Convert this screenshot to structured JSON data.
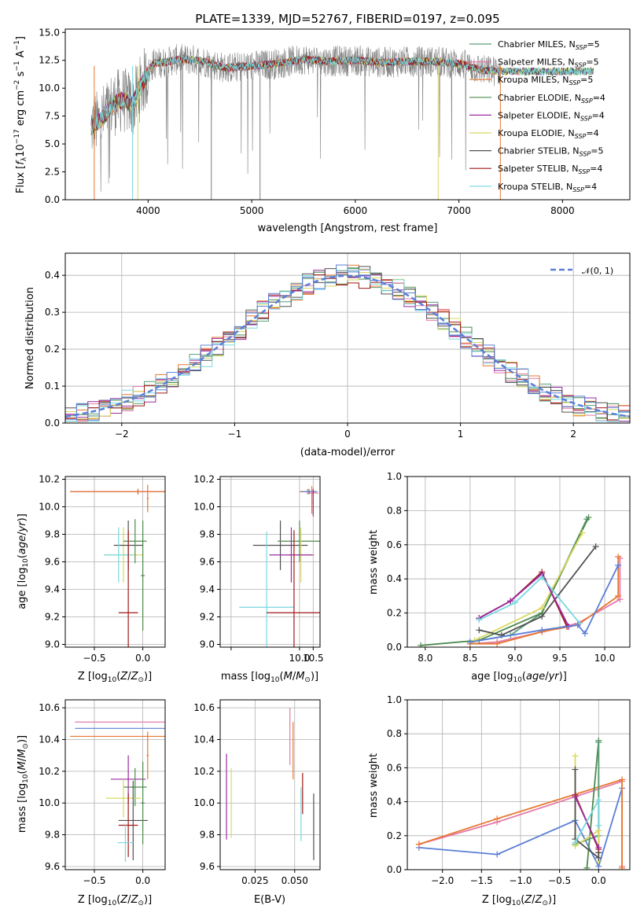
{
  "chart_data": [
    {
      "id": "spectrum",
      "type": "line",
      "title": "PLATE=1339, MJD=52767, FIBERID=0197, z=0.095",
      "xlabel": "wavelength [Angstrom, rest frame]",
      "ylabel": "Flux [f_λ 10^-17 erg cm^-2 s^-1 A^-1]",
      "xlim": [
        3200,
        8650
      ],
      "ylim": [
        0,
        15.3
      ],
      "xticks": [
        4000,
        5000,
        6000,
        7000,
        8000
      ],
      "yticks": [
        0.0,
        2.5,
        5.0,
        7.5,
        10.0,
        12.5,
        15.0
      ],
      "observed": {
        "color": "#808080",
        "x": [
          3450,
          3550,
          3650,
          3750,
          3850,
          3950,
          4050,
          4150,
          4300,
          4500,
          4750,
          5000,
          5250,
          5500,
          5750,
          6000,
          6250,
          6500,
          6750,
          7000,
          7250,
          7400
        ],
        "y": [
          6.5,
          7.2,
          8.5,
          9.0,
          8.5,
          10.5,
          12.2,
          12.3,
          12.6,
          12.5,
          11.8,
          12.0,
          12.2,
          12.6,
          12.4,
          12.5,
          12.3,
          12.4,
          12.4,
          12.2,
          11.6,
          11.5
        ]
      },
      "model_span": [
        3450,
        8300
      ],
      "legend_position": "upper right",
      "legend": [
        {
          "name": "Chabrier MILES, N_SSP=5",
          "color": "#5c9e7a"
        },
        {
          "name": "Salpeter MILES, N_SSP=5",
          "color": "#e47aaa"
        },
        {
          "name": "Kroupa MILES, N_SSP=5",
          "color": "#e8782f"
        },
        {
          "name": "Chabrier ELODIE, N_SSP=4",
          "color": "#4d8a4d"
        },
        {
          "name": "Salpeter ELODIE, N_SSP=4",
          "color": "#9a2ba0"
        },
        {
          "name": "Kroupa ELODIE, N_SSP=4",
          "color": "#d8d860"
        },
        {
          "name": "Chabrier STELIB, N_SSP=5",
          "color": "#505050"
        },
        {
          "name": "Salpeter STELIB, N_SSP=4",
          "color": "#a01818"
        },
        {
          "name": "Kroupa STELIB, N_SSP=4",
          "color": "#78d8e0"
        }
      ]
    },
    {
      "id": "residuals",
      "type": "line",
      "xlabel": "(data-model)/error",
      "ylabel": "Normed distribution",
      "xlim": [
        -2.5,
        2.5
      ],
      "ylim": [
        0,
        0.46
      ],
      "xticks": [
        -2,
        -1,
        0,
        1,
        2
      ],
      "yticks": [
        0.0,
        0.1,
        0.2,
        0.3,
        0.4
      ],
      "legend": [
        {
          "name": "N(0,1)",
          "label_display": "𝒩(0, 1)",
          "color": "#5b7fd6",
          "style": "dashed"
        }
      ],
      "histogram_bin_width": 0.1
    },
    {
      "id": "age_vs_z",
      "type": "scatter",
      "xlabel": "Z [log10(Z/Z⊙)]",
      "ylabel": "age [log10(age/yr)]",
      "xlim": [
        -0.8,
        0.23
      ],
      "ylim": [
        8.98,
        10.22
      ],
      "xticks": [
        -0.5,
        0.0
      ],
      "yticks": [
        9.0,
        9.2,
        9.4,
        9.6,
        9.8,
        10.0,
        10.2
      ],
      "points": [
        {
          "x": -0.05,
          "xerr": 0.7,
          "y": 10.11,
          "yerr": 0.02,
          "color": "#5b7fd6"
        },
        {
          "x": -0.05,
          "xerr": 0.68,
          "y": 10.11,
          "yerr": 0.02,
          "color": "#e47aaa"
        },
        {
          "x": -0.05,
          "xerr": 0.7,
          "y": 10.11,
          "yerr": 0.02,
          "color": "#e8782f"
        },
        {
          "x": 0.05,
          "xerr": 0.01,
          "y": 10.06,
          "yerr": 0.1,
          "color": "#e8782f"
        },
        {
          "x": -0.2,
          "xerr": 0.2,
          "y": 9.65,
          "yerr": 0.2,
          "color": "#d8d860"
        },
        {
          "x": -0.15,
          "xerr": 0.15,
          "y": 9.72,
          "yerr": 0.18,
          "color": "#505050"
        },
        {
          "x": -0.08,
          "xerr": 0.12,
          "y": 9.75,
          "yerr": 0.16,
          "color": "#4d8a4d"
        },
        {
          "x": -0.25,
          "xerr": 0.15,
          "y": 9.65,
          "yerr": 0.2,
          "color": "#78d8e0"
        },
        {
          "x": -0.15,
          "xerr": 0.1,
          "y": 9.23,
          "yerr": 0.6,
          "color": "#a01818"
        },
        {
          "x": 0.0,
          "xerr": 0.02,
          "y": 9.5,
          "yerr": 0.4,
          "color": "#4d8a4d"
        }
      ]
    },
    {
      "id": "age_vs_mass",
      "type": "scatter",
      "xlabel": "mass [log10(M/M⊙)]",
      "ylabel": "",
      "xlim": [
        7.1,
        10.75
      ],
      "ylim": [
        8.98,
        10.22
      ],
      "xticks": [
        7.5,
        10.0,
        10.5
      ],
      "xtick_labels": [
        "",
        "10.0",
        "10.5"
      ],
      "yticks": [
        9.0,
        9.2,
        9.4,
        9.6,
        9.8,
        10.0,
        10.2
      ],
      "points": [
        {
          "x": 10.3,
          "xerr": 0.3,
          "y": 10.11,
          "yerr": 0.02,
          "color": "#e8782f"
        },
        {
          "x": 10.5,
          "xerr": 0.2,
          "y": 10.1,
          "yerr": 0.02,
          "color": "#e47aaa"
        },
        {
          "x": 10.35,
          "xerr": 0.3,
          "y": 10.11,
          "yerr": 0.02,
          "color": "#5b7fd6"
        },
        {
          "x": 10.45,
          "xerr": 0.02,
          "y": 10.05,
          "yerr": 0.1,
          "color": "#e8782f"
        },
        {
          "x": 10.5,
          "xerr": 0.02,
          "y": 10.03,
          "yerr": 0.1,
          "color": "#9a2ba0"
        },
        {
          "x": 9.3,
          "xerr": 1.0,
          "y": 9.72,
          "yerr": 0.18,
          "color": "#505050"
        },
        {
          "x": 10.0,
          "xerr": 0.8,
          "y": 9.75,
          "yerr": 0.15,
          "color": "#4d8a4d"
        },
        {
          "x": 10.05,
          "xerr": 0.5,
          "y": 9.65,
          "yerr": 0.2,
          "color": "#d8d860"
        },
        {
          "x": 9.7,
          "xerr": 0.8,
          "y": 9.65,
          "yerr": 0.2,
          "color": "#9a2ba0"
        },
        {
          "x": 8.8,
          "xerr": 1.0,
          "y": 9.27,
          "yerr": 0.55,
          "color": "#78d8e0"
        },
        {
          "x": 9.8,
          "xerr": 1.0,
          "y": 9.23,
          "yerr": 0.6,
          "color": "#a01818"
        }
      ]
    },
    {
      "id": "massweight_vs_age",
      "type": "line",
      "xlabel": "age [log10(age/yr)]",
      "ylabel": "mass weight",
      "xlim": [
        7.8,
        10.28
      ],
      "ylim": [
        0,
        1.0
      ],
      "xticks": [
        8.0,
        8.5,
        9.0,
        9.5,
        10.0
      ],
      "yticks": [
        0.0,
        0.2,
        0.4,
        0.6,
        0.8,
        1.0
      ],
      "series": [
        {
          "color": "#5c9e7a",
          "x": [
            8.5,
            8.95,
            9.3,
            9.8
          ],
          "y": [
            0.03,
            0.07,
            0.2,
            0.75
          ]
        },
        {
          "color": "#e47aaa",
          "x": [
            8.5,
            8.8,
            9.3,
            9.7,
            10.17,
            10.17
          ],
          "y": [
            0.02,
            0.03,
            0.09,
            0.14,
            0.28,
            0.52
          ]
        },
        {
          "color": "#e8782f",
          "x": [
            8.5,
            8.8,
            9.3,
            9.7,
            10.15,
            10.15
          ],
          "y": [
            0.02,
            0.02,
            0.09,
            0.13,
            0.3,
            0.53
          ]
        },
        {
          "color": "#4d8a4d",
          "x": [
            7.95,
            8.6,
            9.3,
            9.82
          ],
          "y": [
            0.01,
            0.04,
            0.2,
            0.76
          ]
        },
        {
          "color": "#d8d860",
          "x": [
            8.55,
            9.3,
            9.75
          ],
          "y": [
            0.04,
            0.23,
            0.67
          ]
        },
        {
          "color": "#505050",
          "x": [
            8.6,
            8.85,
            9.3,
            9.9
          ],
          "y": [
            0.1,
            0.07,
            0.18,
            0.59
          ]
        },
        {
          "color": "#a01818",
          "x": [
            8.6,
            8.95,
            9.3,
            9.58
          ],
          "y": [
            0.17,
            0.27,
            0.44,
            0.12
          ]
        },
        {
          "color": "#9a2ba0",
          "x": [
            8.6,
            8.95,
            9.3,
            9.6
          ],
          "y": [
            0.17,
            0.27,
            0.43,
            0.12
          ]
        },
        {
          "color": "#78d8e0",
          "x": [
            8.6,
            9.0,
            9.3,
            9.72
          ],
          "y": [
            0.16,
            0.26,
            0.41,
            0.14
          ]
        },
        {
          "color": "#5b7fd6",
          "x": [
            8.5,
            9.3,
            9.7,
            9.78,
            10.15
          ],
          "y": [
            0.03,
            0.1,
            0.13,
            0.08,
            0.48
          ]
        }
      ]
    },
    {
      "id": "mass_vs_z",
      "type": "scatter",
      "xlabel": "Z [log10(Z/Z⊙)]",
      "ylabel": "mass [log10(M/M⊙)]",
      "xlim": [
        -0.8,
        0.23
      ],
      "ylim": [
        9.58,
        10.65
      ],
      "xticks": [
        -0.5,
        0.0
      ],
      "yticks": [
        9.6,
        9.8,
        10.0,
        10.2,
        10.4,
        10.6
      ],
      "points": [
        {
          "x": -0.05,
          "xerr": 0.65,
          "y": 10.51,
          "yerr": 0.0,
          "color": "#e47aaa"
        },
        {
          "x": -0.05,
          "xerr": 0.65,
          "y": 10.47,
          "yerr": 0.0,
          "color": "#5b7fd6"
        },
        {
          "x": -0.05,
          "xerr": 0.7,
          "y": 10.42,
          "yerr": 0.0,
          "color": "#e8782f"
        },
        {
          "x": 0.05,
          "xerr": 0.01,
          "y": 10.3,
          "yerr": 0.15,
          "color": "#e8782f"
        },
        {
          "x": -0.15,
          "xerr": 0.18,
          "y": 10.15,
          "yerr": 0.15,
          "color": "#9a2ba0"
        },
        {
          "x": -0.08,
          "xerr": 0.12,
          "y": 10.1,
          "yerr": 0.12,
          "color": "#4d8a4d"
        },
        {
          "x": -0.2,
          "xerr": 0.18,
          "y": 10.03,
          "yerr": 0.12,
          "color": "#d8d860"
        },
        {
          "x": -0.1,
          "xerr": 0.15,
          "y": 9.89,
          "yerr": 0.25,
          "color": "#505050"
        },
        {
          "x": -0.15,
          "xerr": 0.1,
          "y": 9.86,
          "yerr": 0.2,
          "color": "#a01818"
        },
        {
          "x": -0.18,
          "xerr": 0.08,
          "y": 9.75,
          "yerr": 0.12,
          "color": "#78d8e0"
        },
        {
          "x": 0.0,
          "xerr": 0.02,
          "y": 10.0,
          "yerr": 0.26,
          "color": "#4d8a4d"
        }
      ]
    },
    {
      "id": "mass_vs_ebv",
      "type": "scatter",
      "xlabel": "E(B-V)",
      "ylabel": "",
      "xlim": [
        0.003,
        0.066
      ],
      "ylim": [
        9.58,
        10.65
      ],
      "xticks": [
        0.025,
        0.05
      ],
      "xtick_labels": [
        "0.025",
        "0.050"
      ],
      "yticks": [
        9.6,
        9.8,
        10.0,
        10.2,
        10.4,
        10.6
      ],
      "points": [
        {
          "x": 0.047,
          "y": 10.42,
          "yerr": 0.18,
          "color": "#e47aaa"
        },
        {
          "x": 0.049,
          "y": 10.33,
          "yerr": 0.18,
          "color": "#e8782f"
        },
        {
          "x": 0.055,
          "y": 10.06,
          "yerr": 0.13,
          "color": "#a01818"
        },
        {
          "x": 0.054,
          "y": 9.93,
          "yerr": 0.17,
          "color": "#78d8e0"
        },
        {
          "x": 0.062,
          "y": 9.85,
          "yerr": 0.21,
          "color": "#505050"
        },
        {
          "x": 0.007,
          "y": 10.04,
          "yerr": 0.27,
          "color": "#9a2ba0"
        },
        {
          "x": 0.01,
          "y": 10.0,
          "yerr": 0.22,
          "color": "#d8d860"
        }
      ]
    },
    {
      "id": "massweight_vs_z",
      "type": "line",
      "xlabel": "Z [log10(Z/Z⊙)]",
      "ylabel": "mass weight",
      "xlim": [
        -2.45,
        0.4
      ],
      "ylim": [
        0,
        1.0
      ],
      "xticks": [
        -2.0,
        -1.5,
        -1.0,
        -0.5,
        0.0
      ],
      "yticks": [
        0.0,
        0.2,
        0.4,
        0.6,
        0.8,
        1.0
      ],
      "series": [
        {
          "color": "#5b7fd6",
          "x": [
            -2.3,
            -1.3,
            -0.3,
            0.0,
            0.3
          ],
          "y": [
            0.13,
            0.09,
            0.29,
            0.02,
            0.48
          ]
        },
        {
          "color": "#e47aaa",
          "x": [
            -2.3,
            -1.3,
            0.3,
            0.3
          ],
          "y": [
            0.15,
            0.28,
            0.52,
            0.02
          ]
        },
        {
          "color": "#e8782f",
          "x": [
            -2.3,
            -1.3,
            0.3,
            0.3
          ],
          "y": [
            0.15,
            0.3,
            0.53,
            0.01
          ]
        },
        {
          "color": "#4d8a4d",
          "x": [
            -0.15,
            0.0,
            0.0
          ],
          "y": [
            0.01,
            0.76,
            0.1
          ]
        },
        {
          "color": "#5c9e7a",
          "x": [
            -0.3,
            0.0,
            0.0
          ],
          "y": [
            0.15,
            0.2,
            0.75
          ]
        },
        {
          "color": "#d8d860",
          "x": [
            -0.3,
            -0.3,
            0.0,
            0.0
          ],
          "y": [
            0.67,
            0.14,
            0.23,
            0.05
          ]
        },
        {
          "color": "#505050",
          "x": [
            -0.3,
            -0.3,
            0.0,
            0.0
          ],
          "y": [
            0.59,
            0.18,
            0.07,
            0.1
          ]
        },
        {
          "color": "#a01818",
          "x": [
            -0.3,
            0.0
          ],
          "y": [
            0.44,
            0.12
          ]
        },
        {
          "color": "#9a2ba0",
          "x": [
            -0.3,
            0.0
          ],
          "y": [
            0.43,
            0.13
          ]
        },
        {
          "color": "#78d8e0",
          "x": [
            -0.3,
            0.0,
            0.0
          ],
          "y": [
            0.16,
            0.41,
            0.26
          ]
        }
      ]
    }
  ]
}
